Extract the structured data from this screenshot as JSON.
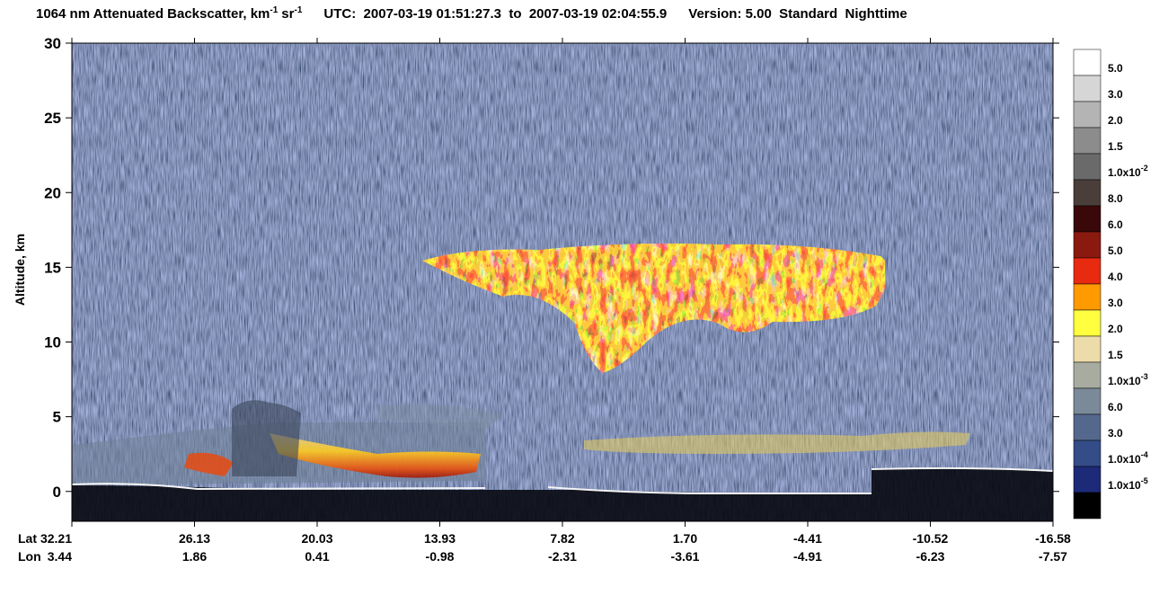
{
  "chart_data": {
    "type": "curtain",
    "title": {
      "quantity": "1064 nm Attenuated Backscatter, km",
      "exp1": "-1",
      "unit2": "sr",
      "exp2": "-1",
      "time": "UTC:  2007-03-19 01:51:27.3  to  2007-03-19 02:04:55.9",
      "version": "Version: 5.00  Standard  Nighttime"
    },
    "y_label": "Altitude, km",
    "ylim": [
      -2,
      30
    ],
    "yticks": [
      0,
      5,
      10,
      15,
      20,
      25,
      30
    ],
    "x_row_labels": [
      "Lat",
      "Lon"
    ],
    "lat": [
      "32.21",
      "26.13",
      "20.03",
      "13.93",
      "7.82",
      "1.70",
      "-4.41",
      "-10.52",
      "-16.58"
    ],
    "lon": [
      "3.44",
      "1.86",
      "0.41",
      "-0.98",
      "-2.31",
      "-3.61",
      "-4.91",
      "-6.23",
      "-7.57"
    ],
    "colorbar": {
      "colors": [
        "#ffffff",
        "#d6d6d6",
        "#b4b4b4",
        "#8c8c8c",
        "#6a6a6a",
        "#4a3e3a",
        "#3a0808",
        "#8a1a10",
        "#e82a10",
        "#ff9a00",
        "#ffff40",
        "#ecdcaa",
        "#a8aca0",
        "#7a8a98",
        "#54688e",
        "#344c88",
        "#1c2a78",
        "#000000"
      ],
      "labels": [
        {
          "base": "5.0"
        },
        {
          "base": "3.0"
        },
        {
          "base": "2.0"
        },
        {
          "base": "1.5"
        },
        {
          "base": "1.0x10",
          "exp": "-2"
        },
        {
          "base": "8.0"
        },
        {
          "base": "6.0"
        },
        {
          "base": "5.0"
        },
        {
          "base": "4.0"
        },
        {
          "base": "3.0"
        },
        {
          "base": "2.0"
        },
        {
          "base": "1.5"
        },
        {
          "base": "1.0x10",
          "exp": "-3"
        },
        {
          "base": "6.0"
        },
        {
          "base": "3.0"
        },
        {
          "base": "1.0x10",
          "exp": "-4"
        },
        {
          "base": "1.0x10",
          "exp": "-5"
        }
      ]
    }
  }
}
